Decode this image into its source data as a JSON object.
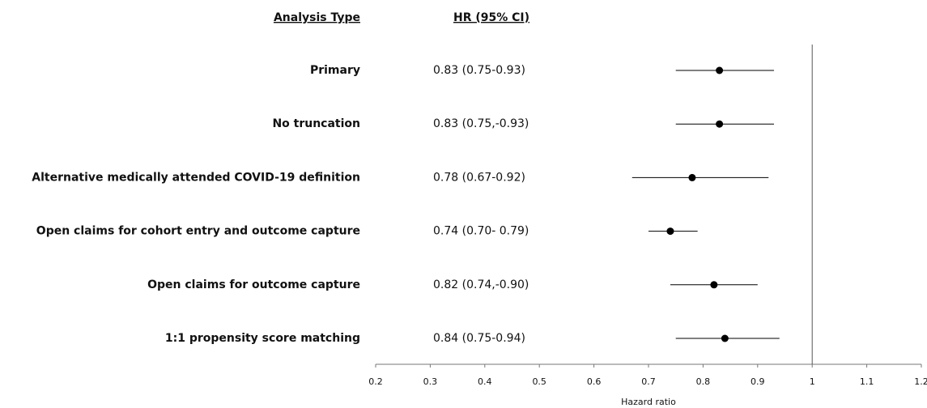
{
  "chart_data": {
    "type": "forest",
    "category_header": "Analysis Type",
    "value_header": "HR (95% CI)",
    "xlabel": "Hazard ratio",
    "categories": [
      "Primary",
      "No truncation",
      "Alternative medically attended COVID-19 definition",
      "Open claims for cohort entry and outcome capture",
      "Open claims for outcome capture",
      "1:1 propensity score matching"
    ],
    "values": [
      0.83,
      0.83,
      0.78,
      0.74,
      0.82,
      0.84
    ],
    "lower": [
      0.75,
      0.75,
      0.67,
      0.7,
      0.74,
      0.75
    ],
    "upper": [
      0.93,
      0.93,
      0.92,
      0.79,
      0.9,
      0.94
    ],
    "value_labels": [
      "0.83 (0.75-0.93)",
      "0.83 (0.75,-0.93)",
      "0.78 (0.67-0.92)",
      "0.74 (0.70- 0.79)",
      "0.82 (0.74,-0.90)",
      "0.84 (0.75-0.94)"
    ],
    "color": "#000000",
    "reference_line": 1,
    "xlim": [
      0.2,
      1.2
    ],
    "xticks": [
      0.2,
      0.3,
      0.4,
      0.5,
      0.6,
      0.7,
      0.8,
      0.9,
      1,
      1.1,
      1.2
    ]
  }
}
